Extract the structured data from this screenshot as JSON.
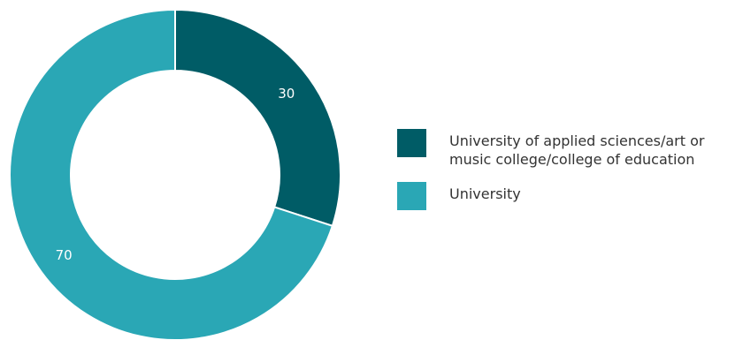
{
  "chart_data": {
    "type": "pie",
    "donut": true,
    "categories": [
      "University of applied sciences/art or\nmusic college/college of education",
      "University"
    ],
    "values": [
      30,
      70
    ],
    "data_labels": [
      "30",
      "70"
    ],
    "colors": [
      "#005c66",
      "#2aa7b5"
    ],
    "title": "",
    "legend_position": "right"
  }
}
